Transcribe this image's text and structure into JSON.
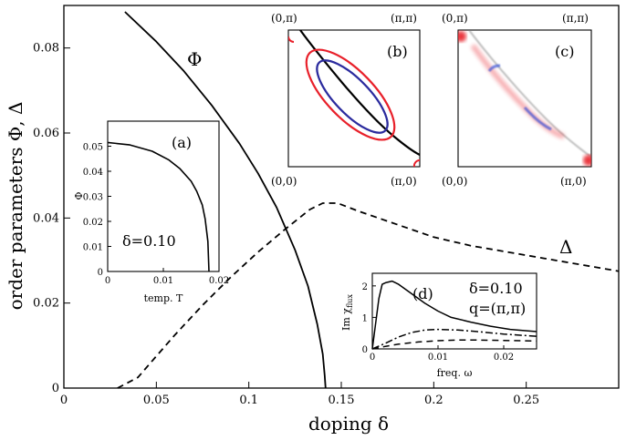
{
  "chart_data": {
    "main": {
      "type": "line",
      "xlabel": "doping  δ",
      "ylabel": "order parameters  Φ, Δ",
      "xlim": [
        0,
        0.3
      ],
      "ylim": [
        0,
        0.09
      ],
      "xticks": [
        "0",
        "0.05",
        "0.1",
        "0.15",
        "0.2",
        "0.25"
      ],
      "xtick_values": [
        0,
        0.05,
        0.1,
        0.15,
        0.2,
        0.25
      ],
      "yticks": [
        "0",
        "0.02",
        "0.04",
        "0.06",
        "0.08"
      ],
      "ytick_values": [
        0,
        0.02,
        0.04,
        0.06,
        0.08
      ],
      "series": [
        {
          "name": "Φ",
          "style": "solid",
          "x": [
            0.033,
            0.05,
            0.065,
            0.08,
            0.095,
            0.105,
            0.115,
            0.125,
            0.132,
            0.137,
            0.14,
            0.141,
            0.1415
          ],
          "y": [
            0.0885,
            0.0815,
            0.0745,
            0.0665,
            0.0575,
            0.0505,
            0.0425,
            0.0325,
            0.024,
            0.015,
            0.008,
            0.003,
            0.0
          ]
        },
        {
          "name": "Δ",
          "style": "dashed",
          "x": [
            0.029,
            0.04,
            0.05,
            0.06,
            0.075,
            0.09,
            0.105,
            0.12,
            0.133,
            0.14,
            0.148,
            0.16,
            0.18,
            0.2,
            0.22,
            0.24,
            0.26,
            0.28,
            0.3
          ],
          "y": [
            0.0,
            0.0025,
            0.0075,
            0.0125,
            0.0195,
            0.026,
            0.032,
            0.0375,
            0.042,
            0.0435,
            0.0435,
            0.0415,
            0.0385,
            0.0355,
            0.0335,
            0.032,
            0.0305,
            0.029,
            0.0275
          ]
        }
      ]
    },
    "inset_a": {
      "type": "line",
      "tag": "(a)",
      "xlabel": "temp. T",
      "ylabel": "Φ",
      "annotation": "δ=0.10",
      "xlim": [
        0,
        0.02
      ],
      "ylim": [
        0,
        0.06
      ],
      "xticks": [
        "0",
        "0.01",
        "0.02"
      ],
      "xtick_values": [
        0,
        0.01,
        0.02
      ],
      "yticks": [
        "0",
        "0.01",
        "0.02",
        "0.03",
        "0.04",
        "0.05"
      ],
      "ytick_values": [
        0,
        0.01,
        0.02,
        0.03,
        0.04,
        0.05
      ],
      "x": [
        0,
        0.004,
        0.008,
        0.011,
        0.013,
        0.015,
        0.016,
        0.017,
        0.0175,
        0.018,
        0.0182
      ],
      "y": [
        0.0515,
        0.0505,
        0.048,
        0.0445,
        0.041,
        0.036,
        0.032,
        0.0265,
        0.021,
        0.012,
        0.0
      ]
    },
    "inset_b": {
      "type": "diagram",
      "tag": "(b)",
      "corners": {
        "top_left": "(0,π)",
        "top_right": "(π,π)",
        "bottom_left": "(0,0)",
        "bottom_right": "(π,0)"
      },
      "colors": {
        "outer_contour": "#e8202a",
        "inner_contour": "#2b2b9e",
        "fermi_line": "#000000"
      }
    },
    "inset_c": {
      "type": "heatmap",
      "tag": "(c)",
      "corners": {
        "top_left": "(0,π)",
        "top_right": "(π,π)",
        "bottom_left": "(0,0)",
        "bottom_right": "(π,0)"
      },
      "colors": {
        "positive": "#e8202a",
        "negative": "#3b55d9",
        "neutral": "#888888"
      }
    },
    "inset_d": {
      "type": "line",
      "tag": "(d)",
      "xlabel": "freq. ω",
      "ylabel": "Im χ",
      "ylabel_sub": "flux",
      "annotation_line1": "δ=0.10",
      "annotation_line2": "q=(π,π)",
      "xlim": [
        0,
        0.025
      ],
      "ylim": [
        0,
        2.4
      ],
      "xticks": [
        "0",
        "0.01",
        "0.02"
      ],
      "xtick_values": [
        0,
        0.01,
        0.02
      ],
      "yticks": [
        "0",
        "1",
        "2"
      ],
      "ytick_values": [
        0,
        1,
        2
      ],
      "series": [
        {
          "style": "solid",
          "x": [
            0,
            0.0005,
            0.001,
            0.0015,
            0.002,
            0.003,
            0.004,
            0.006,
            0.008,
            0.01,
            0.012,
            0.015,
            0.018,
            0.021,
            0.025
          ],
          "y": [
            0.0,
            0.8,
            1.6,
            2.05,
            2.1,
            2.15,
            2.05,
            1.75,
            1.45,
            1.2,
            1.0,
            0.85,
            0.72,
            0.62,
            0.55
          ]
        },
        {
          "style": "dashdot",
          "x": [
            0,
            0.002,
            0.004,
            0.006,
            0.008,
            0.01,
            0.013,
            0.016,
            0.02,
            0.025
          ],
          "y": [
            0.0,
            0.18,
            0.38,
            0.52,
            0.6,
            0.62,
            0.6,
            0.55,
            0.47,
            0.4
          ]
        },
        {
          "style": "dashed",
          "x": [
            0,
            0.002,
            0.004,
            0.007,
            0.01,
            0.013,
            0.016,
            0.02,
            0.025
          ],
          "y": [
            0.0,
            0.08,
            0.15,
            0.22,
            0.26,
            0.28,
            0.28,
            0.27,
            0.25
          ]
        }
      ]
    }
  }
}
